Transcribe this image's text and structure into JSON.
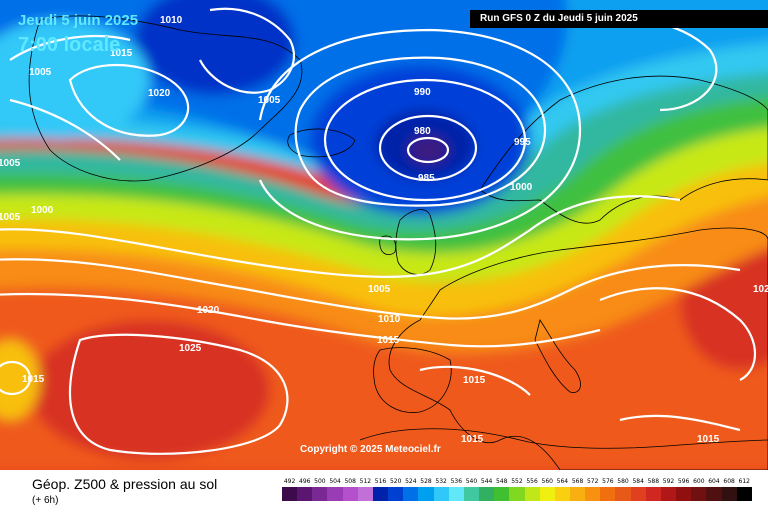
{
  "header": {
    "date": "Jeudi 5 juin 2025",
    "time": "7:00 locale",
    "run": "Run GFS 0 Z du Jeudi 5 juin 2025"
  },
  "copyright": "Copyright © 2025 Meteociel.fr",
  "footer": {
    "title": "Géop. Z500 & pression au sol",
    "subtitle": "(+ 6h)"
  },
  "scale": {
    "labels": [
      "492",
      "496",
      "500",
      "504",
      "508",
      "512",
      "516",
      "520",
      "524",
      "528",
      "532",
      "536",
      "540",
      "544",
      "548",
      "552",
      "556",
      "560",
      "564",
      "568",
      "572",
      "576",
      "580",
      "584",
      "588",
      "592",
      "596",
      "600",
      "604",
      "608",
      "612"
    ],
    "colors": [
      "#3d0a4c",
      "#5a1670",
      "#7a2894",
      "#9a3cb4",
      "#b450cc",
      "#c070d8",
      "#0022aa",
      "#0040d0",
      "#0070e8",
      "#00a0f0",
      "#30c8f8",
      "#60e8f8",
      "#40c8a0",
      "#30b060",
      "#40c030",
      "#80d820",
      "#c0e818",
      "#f0f010",
      "#f8d010",
      "#f8b010",
      "#f89010",
      "#f07010",
      "#e85818",
      "#e04020",
      "#d02820",
      "#b01818",
      "#901010",
      "#701010",
      "#501010",
      "#301010",
      "#000000"
    ]
  },
  "isobars": [
    {
      "label": "990"
    },
    {
      "label": "980"
    },
    {
      "label": "985"
    },
    {
      "label": "995"
    },
    {
      "label": "1000"
    },
    {
      "label": "1005"
    },
    {
      "label": "1010"
    },
    {
      "label": "1015"
    },
    {
      "label": "1020"
    },
    {
      "label": "1025"
    },
    {
      "label": "1005"
    },
    {
      "label": "1010"
    },
    {
      "label": "1005"
    },
    {
      "label": "1020"
    },
    {
      "label": "1005"
    },
    {
      "label": "1000"
    },
    {
      "label": "1005"
    },
    {
      "label": "1015"
    },
    {
      "label": "1015"
    },
    {
      "label": "1015"
    },
    {
      "label": "1015"
    },
    {
      "label": "102"
    },
    {
      "label": "1015"
    },
    {
      "label": "1005"
    }
  ]
}
